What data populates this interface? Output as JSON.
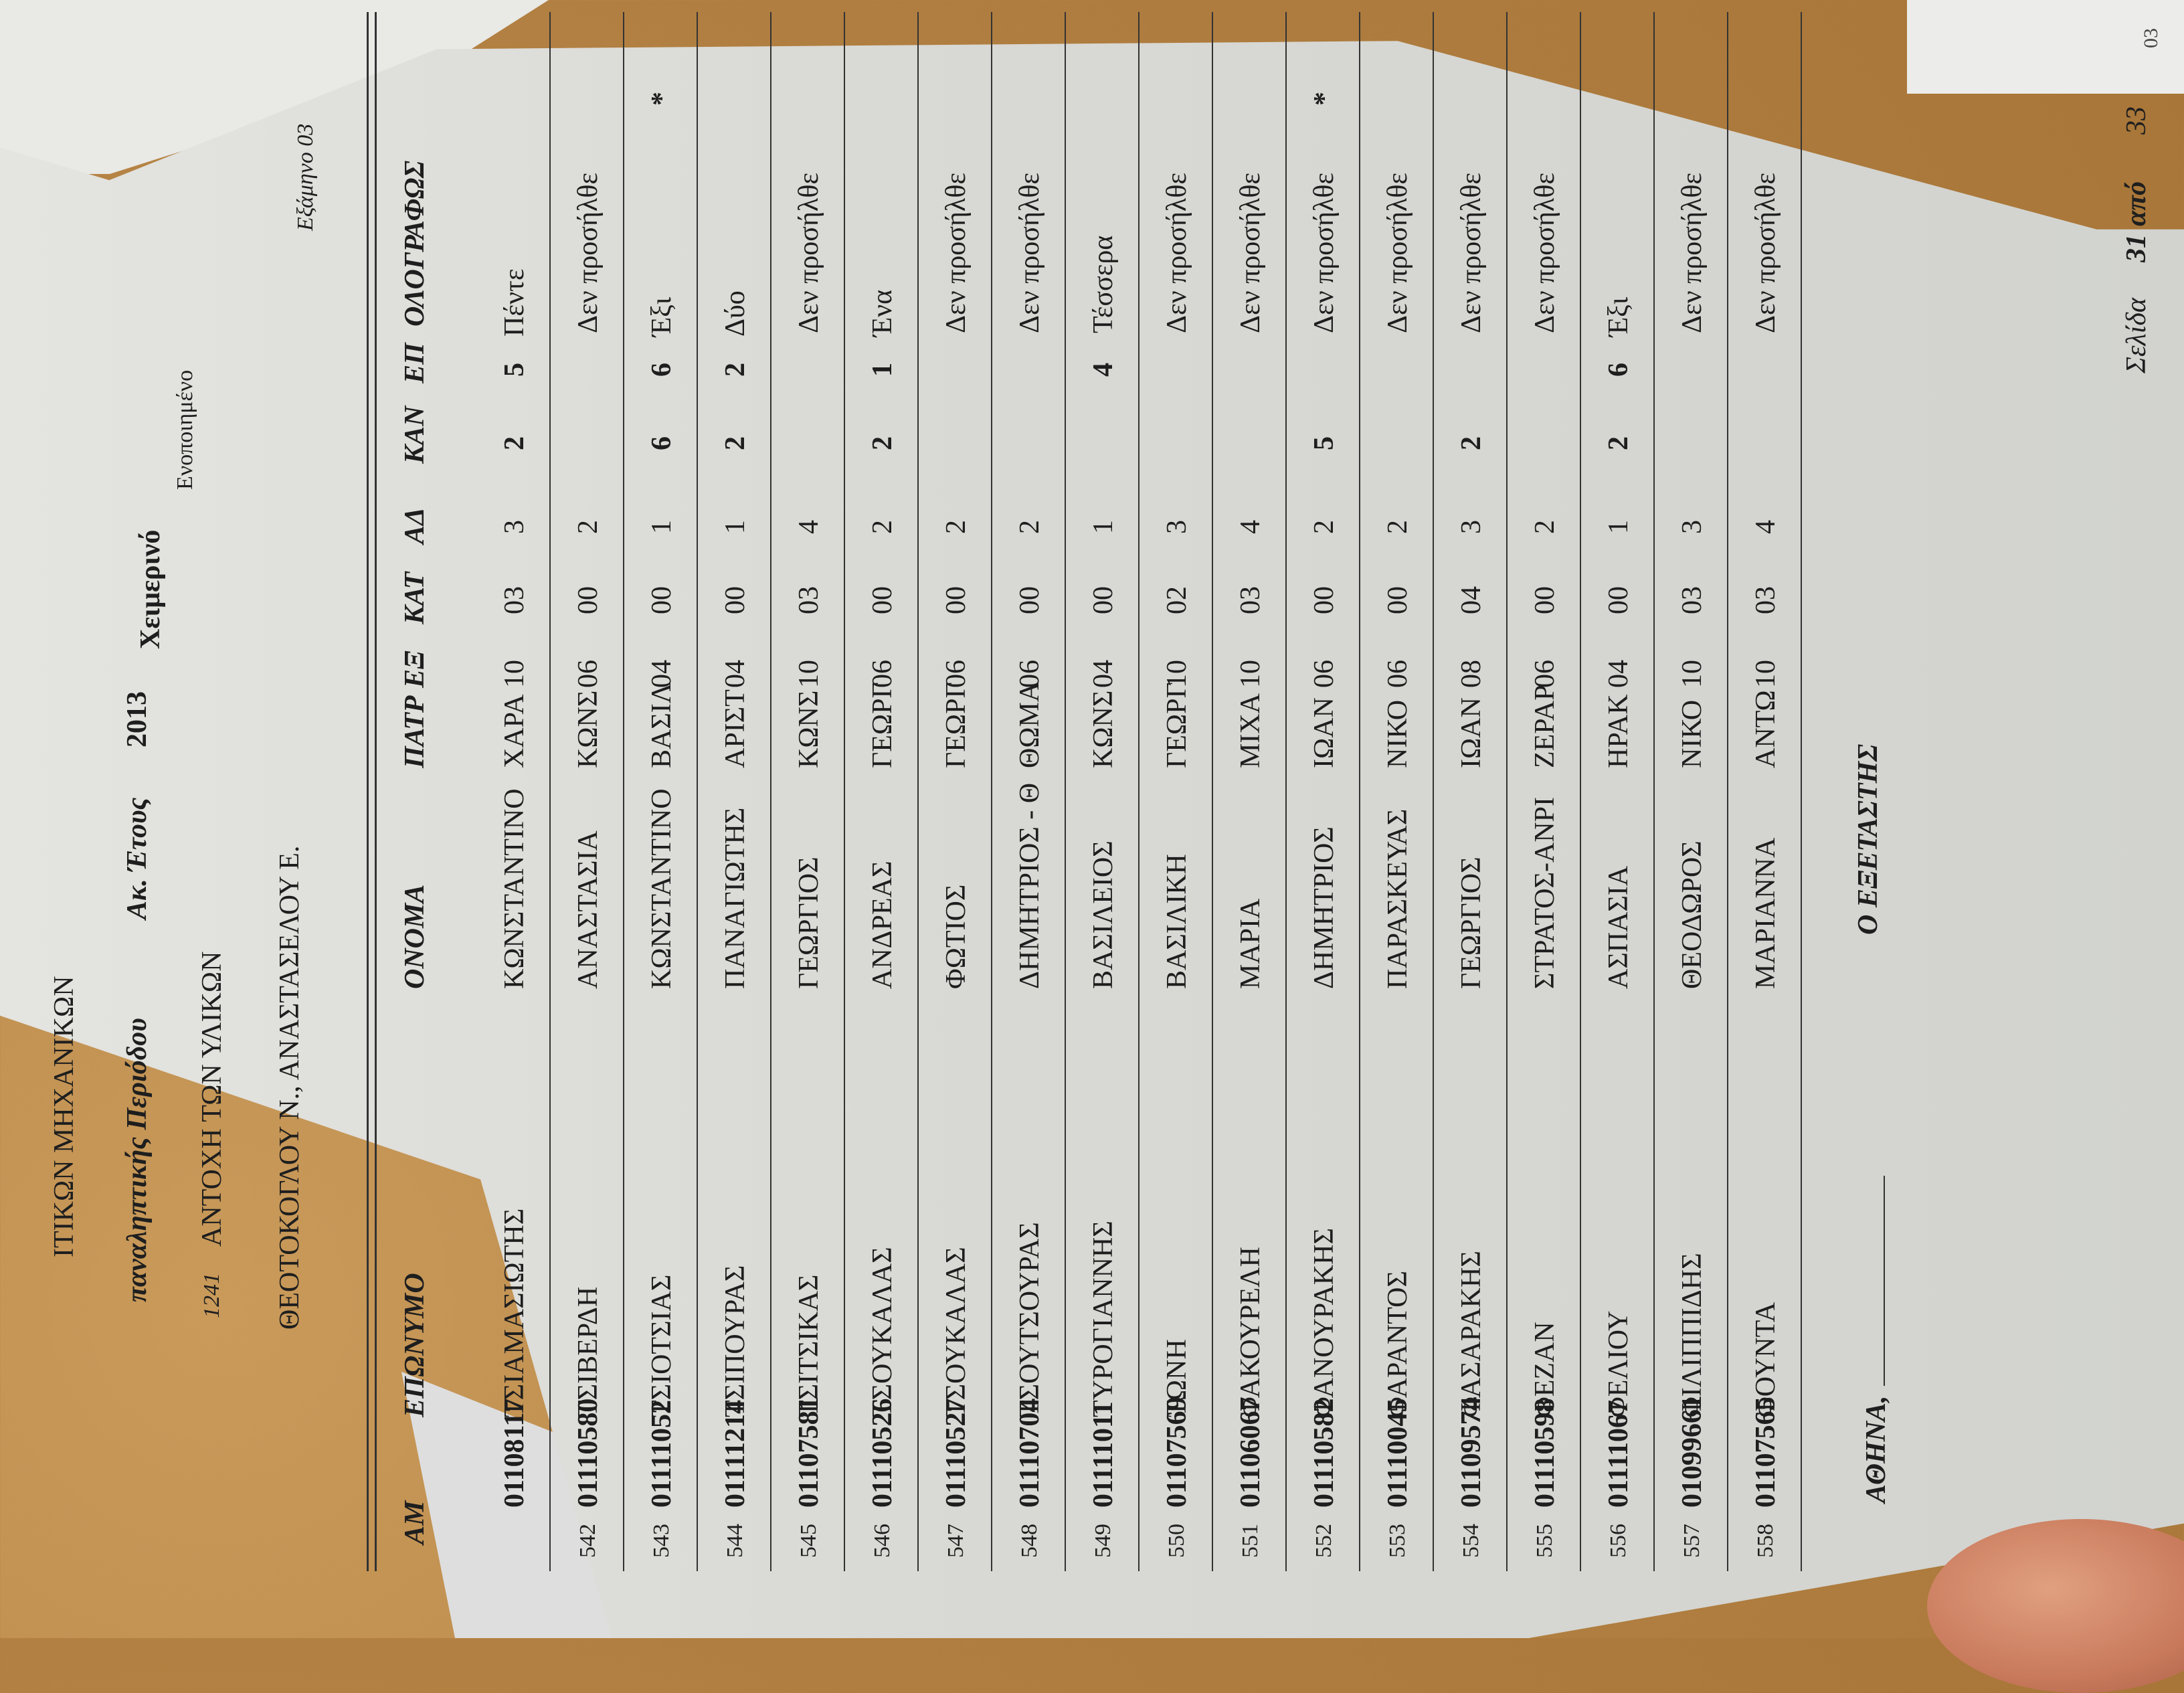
{
  "header": {
    "faculty": "ΙΤΙΚΩΝ ΜΗΧΑΝΙΚΩΝ",
    "period": "παναληπτικής Περιόδου",
    "academic_year_label": "Ακ. Έτους",
    "academic_year": "2013",
    "semester_type": "Χειμερινό",
    "unified": "Ενοποιημένο",
    "course_code": "1241",
    "course_name": "ΑΝΤΟΧΗ ΤΩΝ ΥΛΙΚΩΝ",
    "semester": "Εξάμηνο 03",
    "instructors": "ΘΕΟΤΟΚΟΓΛΟΥ Ν., ΑΝΑΣΤΑΣΕΛΟΥ Ε."
  },
  "table": {
    "columns": [
      "ΑΜ",
      "ΕΠΩΝΥΜΟ",
      "ΟΝΟΜΑ",
      "ΠΑΤΡ",
      "ΕΞ",
      "ΚΑΤ",
      "ΑΔ",
      "ΚΑΝ",
      "ΕΠ",
      "ΟΛΟΓΡΑΦΩΣ"
    ],
    "rows": [
      {
        "n": "",
        "am": "01108117",
        "surname": "ΤΣΙΑΜΑΣΙΩΤΗΣ",
        "name": "ΚΩΝΣΤΑΝΤΙΝΟ",
        "patr": "ΧΑΡΑ",
        "ex": "10",
        "kat": "03",
        "ad": "3",
        "kan": "2",
        "ep": "5",
        "words": "Πέντε",
        "mark": ""
      },
      {
        "n": "542",
        "am": "01110580",
        "surname": "ΤΣΙΒΕΡΔΗ",
        "name": "ΑΝΑΣΤΑΣΙΑ",
        "patr": "ΚΩΝΣ",
        "ex": "06",
        "kat": "00",
        "ad": "2",
        "kan": "",
        "ep": "",
        "words": "Δεν προσήλθε",
        "mark": ""
      },
      {
        "n": "543",
        "am": "01111052",
        "surname": "ΤΣΙΟΤΣΙΑΣ",
        "name": "ΚΩΝΣΤΑΝΤΙΝΟ",
        "patr": "ΒΑΣΙΛ",
        "ex": "04",
        "kat": "00",
        "ad": "1",
        "kan": "6",
        "ep": "6",
        "words": "Έξι",
        "mark": "*"
      },
      {
        "n": "544",
        "am": "01111214",
        "surname": "ΤΣΙΠΟΥΡΑΣ",
        "name": "ΠΑΝΑΓΙΩΤΗΣ",
        "patr": "ΑΡΙΣΤ",
        "ex": "04",
        "kat": "00",
        "ad": "1",
        "kan": "2",
        "ep": "2",
        "words": "Δύο",
        "mark": ""
      },
      {
        "n": "545",
        "am": "01107581",
        "surname": "ΤΣΙΤΣΙΚΑΣ",
        "name": "ΓΕΩΡΓΙΟΣ",
        "patr": "ΚΩΝΣ",
        "ex": "10",
        "kat": "03",
        "ad": "4",
        "kan": "",
        "ep": "",
        "words": "Δεν προσήλθε",
        "mark": ""
      },
      {
        "n": "546",
        "am": "01110526",
        "surname": "ΤΣΟΥΚΑΛΑΣ",
        "name": "ΑΝΔΡΕΑΣ",
        "patr": "ΓΕΩΡΓ",
        "ex": "06",
        "kat": "00",
        "ad": "2",
        "kan": "2",
        "ep": "1",
        "words": "Ένα",
        "mark": ""
      },
      {
        "n": "547",
        "am": "01110527",
        "surname": "ΤΣΟΥΚΑΛΑΣ",
        "name": "ΦΩΤΙΟΣ",
        "patr": "ΓΕΩΡΓ",
        "ex": "06",
        "kat": "00",
        "ad": "2",
        "kan": "",
        "ep": "",
        "words": "Δεν προσήλθε",
        "mark": ""
      },
      {
        "n": "548",
        "am": "01110704",
        "surname": "ΤΣΟΥΤΣΟΥΡΑΣ",
        "name": "ΔΗΜΗΤΡΙΟΣ - Θ",
        "patr": "ΘΩΜΑ",
        "ex": "06",
        "kat": "00",
        "ad": "2",
        "kan": "",
        "ep": "",
        "words": "Δεν προσήλθε",
        "mark": ""
      },
      {
        "n": "549",
        "am": "01111011",
        "surname": "ΤΥΡΟΓΙΑΝΝΗΣ",
        "name": "ΒΑΣΙΛΕΙΟΣ",
        "patr": "ΚΩΝΣ",
        "ex": "04",
        "kat": "00",
        "ad": "1",
        "kan": "",
        "ep": "4",
        "words": "Τέσσερα",
        "mark": ""
      },
      {
        "n": "550",
        "am": "01107569",
        "surname": "ΤΩΝΗ",
        "name": "ΒΑΣΙΛΙΚΗ",
        "patr": "ΓΕΩΡΓ",
        "ex": "10",
        "kat": "02",
        "ad": "3",
        "kan": "",
        "ep": "",
        "words": "Δεν προσήλθε",
        "mark": ""
      },
      {
        "n": "551",
        "am": "01106067",
        "surname": "ΦΑΚΟΥΡΕΛΗ",
        "name": "ΜΑΡΙΑ",
        "patr": "ΜΙΧΑ",
        "ex": "10",
        "kat": "03",
        "ad": "4",
        "kan": "",
        "ep": "",
        "words": "Δεν προσήλθε",
        "mark": ""
      },
      {
        "n": "552",
        "am": "01110582",
        "surname": "ΦΑΝΟΥΡΑΚΗΣ",
        "name": "ΔΗΜΗΤΡΙΟΣ",
        "patr": "ΙΩΑΝ",
        "ex": "06",
        "kat": "00",
        "ad": "2",
        "kan": "5",
        "ep": "",
        "words": "Δεν προσήλθε",
        "mark": "*"
      },
      {
        "n": "553",
        "am": "01110045",
        "surname": "ΦΑΡΑΝΤΟΣ",
        "name": "ΠΑΡΑΣΚΕΥΑΣ",
        "patr": "ΝΙΚΟ",
        "ex": "06",
        "kat": "00",
        "ad": "2",
        "kan": "",
        "ep": "",
        "words": "Δεν προσήλθε",
        "mark": ""
      },
      {
        "n": "554",
        "am": "01109574",
        "surname": "ΦΑΣΑΡΑΚΗΣ",
        "name": "ΓΕΩΡΓΙΟΣ",
        "patr": "ΙΩΑΝ",
        "ex": "08",
        "kat": "04",
        "ad": "3",
        "kan": "2",
        "ep": "",
        "words": "Δεν προσήλθε",
        "mark": ""
      },
      {
        "n": "555",
        "am": "01110598",
        "surname": "ΦΕΖΑΝ",
        "name": "ΣΤΡΑΤΟΣ-ΑΝΡΙ",
        "patr": "ΖΕΡΑΡ",
        "ex": "06",
        "kat": "00",
        "ad": "2",
        "kan": "",
        "ep": "",
        "words": "Δεν προσήλθε",
        "mark": ""
      },
      {
        "n": "556",
        "am": "01111067",
        "surname": "ΦΕΛΙΟΥ",
        "name": "ΑΣΠΑΣΙΑ",
        "patr": "ΗΡΑΚ",
        "ex": "04",
        "kat": "00",
        "ad": "1",
        "kan": "2",
        "ep": "6",
        "words": "Έξι",
        "mark": ""
      },
      {
        "n": "557",
        "am": "01099661",
        "surname": "ΦΙΛΙΠΠΙΔΗΣ",
        "name": "ΘΕΟΔΩΡΟΣ",
        "patr": "ΝΙΚΟ",
        "ex": "10",
        "kat": "03",
        "ad": "3",
        "kan": "",
        "ep": "",
        "words": "Δεν προσήλθε",
        "mark": ""
      },
      {
        "n": "558",
        "am": "01107565",
        "surname": "ΦΟΥΝΤΑ",
        "name": "ΜΑΡΙΑΝΝΑ",
        "patr": "ΑΝΤΩ",
        "ex": "10",
        "kat": "03",
        "ad": "4",
        "kan": "",
        "ep": "",
        "words": "Δεν προσήλθε",
        "mark": ""
      }
    ]
  },
  "footer": {
    "place": "ΑΘΗΝΑ,",
    "examiner": "Ο ΕΞΕΤΑΣΤΗΣ",
    "page_label": "Σελίδα",
    "page_current": "31",
    "page_of": "από",
    "page_total": "33"
  },
  "other_page_fragment": "03",
  "colors": {
    "wood": "#b8884a",
    "paper": "#d9d9d5",
    "ink": "#1e1e1e"
  }
}
